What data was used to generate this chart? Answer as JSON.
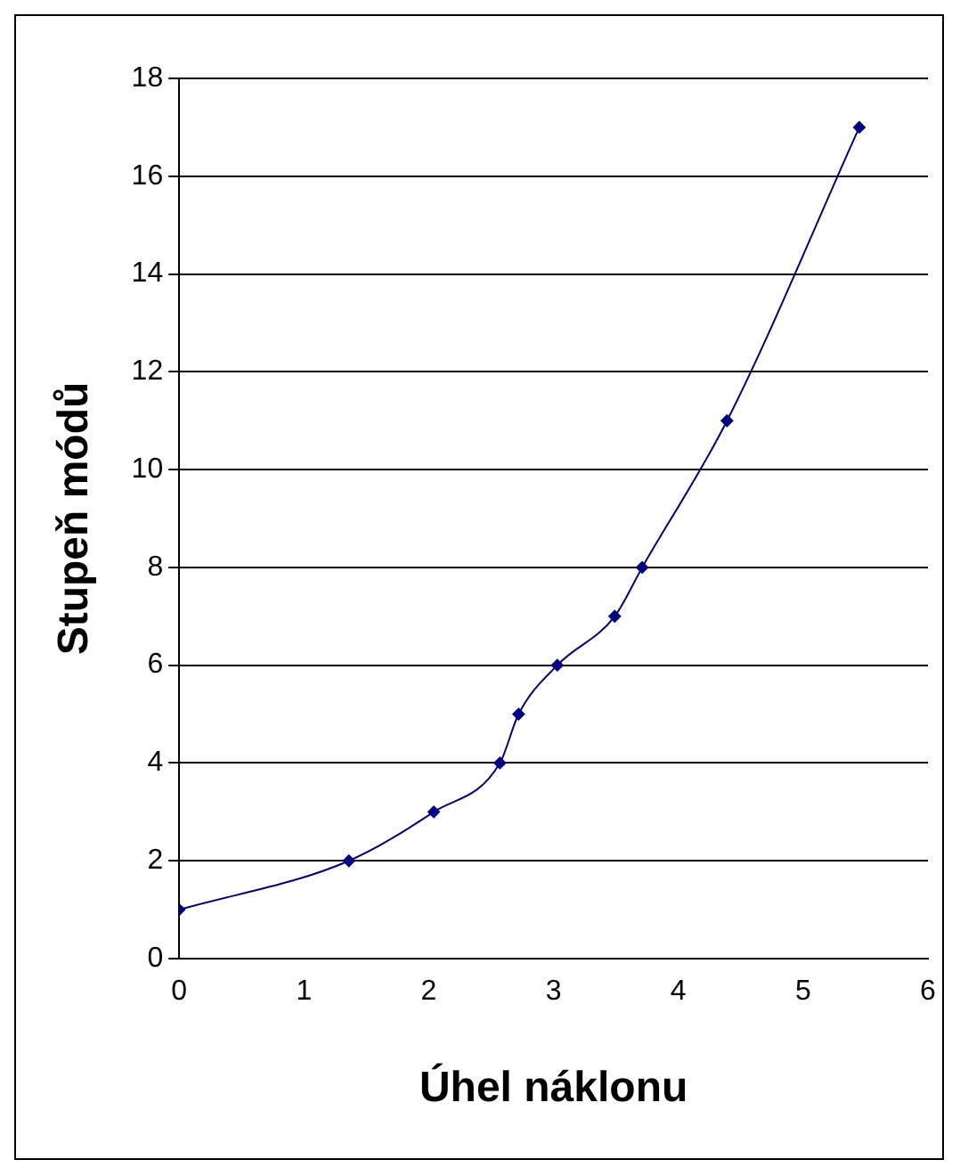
{
  "chart_data": {
    "type": "line",
    "xlabel": "Úhel náklonu",
    "ylabel": "Stupeň módů",
    "series": [
      {
        "color": "#000080",
        "x": [
          0,
          1.36,
          2.04,
          2.57,
          2.72,
          3.03,
          3.49,
          3.71,
          4.39,
          5.45
        ],
        "values": [
          1,
          2,
          3,
          4,
          5,
          6,
          7,
          8,
          11,
          17
        ]
      }
    ],
    "xlim": [
      0,
      6
    ],
    "xticks": [
      0,
      1,
      2,
      3,
      4,
      5,
      6
    ],
    "ylim": [
      0,
      18
    ],
    "yticks": [
      0,
      2,
      4,
      6,
      8,
      10,
      12,
      14,
      16,
      18
    ],
    "grid": "y",
    "legend": false,
    "marker": "diamond",
    "line_style": "solid"
  }
}
